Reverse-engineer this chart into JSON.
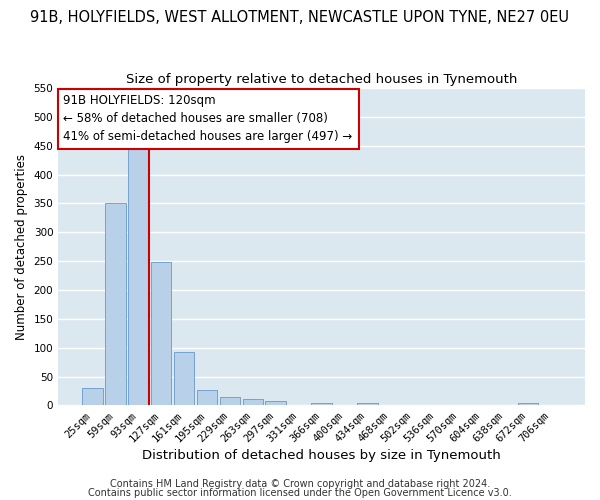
{
  "title": "91B, HOLYFIELDS, WEST ALLOTMENT, NEWCASTLE UPON TYNE, NE27 0EU",
  "subtitle": "Size of property relative to detached houses in Tynemouth",
  "xlabel": "Distribution of detached houses by size in Tynemouth",
  "ylabel": "Number of detached properties",
  "bar_labels": [
    "25sqm",
    "59sqm",
    "93sqm",
    "127sqm",
    "161sqm",
    "195sqm",
    "229sqm",
    "263sqm",
    "297sqm",
    "331sqm",
    "366sqm",
    "400sqm",
    "434sqm",
    "468sqm",
    "502sqm",
    "536sqm",
    "570sqm",
    "604sqm",
    "638sqm",
    "672sqm",
    "706sqm"
  ],
  "bar_values": [
    30,
    350,
    445,
    248,
    93,
    27,
    15,
    12,
    7,
    0,
    5,
    0,
    5,
    0,
    0,
    0,
    0,
    0,
    0,
    5,
    0
  ],
  "bar_color": "#b8d0e8",
  "bar_edgecolor": "#6699cc",
  "property_line_color": "#cc0000",
  "annotation_line1": "91B HOLYFIELDS: 120sqm",
  "annotation_line2": "← 58% of detached houses are smaller (708)",
  "annotation_line3": "41% of semi-detached houses are larger (497) →",
  "annotation_box_color": "#ffffff",
  "annotation_box_edgecolor": "#cc0000",
  "ylim": [
    0,
    550
  ],
  "yticks": [
    0,
    50,
    100,
    150,
    200,
    250,
    300,
    350,
    400,
    450,
    500,
    550
  ],
  "figure_background": "#ffffff",
  "plot_background": "#dce8f0",
  "grid_color": "#ffffff",
  "footer_line1": "Contains HM Land Registry data © Crown copyright and database right 2024.",
  "footer_line2": "Contains public sector information licensed under the Open Government Licence v3.0.",
  "title_fontsize": 10.5,
  "subtitle_fontsize": 9.5,
  "xlabel_fontsize": 9.5,
  "ylabel_fontsize": 8.5,
  "tick_fontsize": 7.5,
  "annotation_fontsize": 8.5,
  "footer_fontsize": 7.0
}
